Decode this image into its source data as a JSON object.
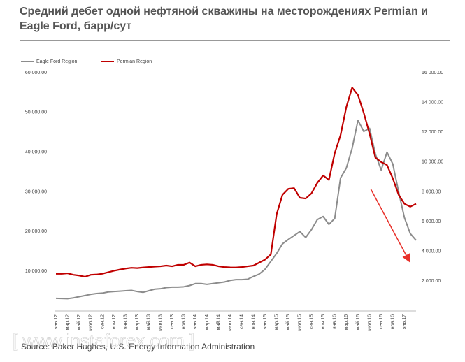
{
  "chart_data": {
    "type": "line",
    "title": "Средний дебет одной нефтяной скважины на месторождениях Permian и Eagle Ford, барр/сут",
    "source": "Source: Baker Hughes, U.S. Energy Information Administration",
    "watermark": "[ www.instaforex.com ]",
    "categories": [
      "янв.12",
      null,
      "мар.12",
      null,
      "май.12",
      null,
      "июл.12",
      null,
      "сен.12",
      null,
      "ноя.12",
      null,
      "янв.13",
      null,
      "мар.13",
      null,
      "май.13",
      null,
      "июл.13",
      null,
      "сен.13",
      null,
      "ноя.13",
      null,
      "янв.14",
      null,
      "мар.14",
      null,
      "май.14",
      null,
      "июл.14",
      null,
      "сен.14",
      null,
      "ноя.14",
      null,
      "янв.15",
      null,
      "мар.15",
      null,
      "май.15",
      null,
      "июл.15",
      null,
      "сен.15",
      null,
      "ноя.15",
      null,
      "янв.16",
      null,
      "мар.16",
      null,
      "май.16",
      null,
      "июл.16",
      null,
      "сен.16",
      null,
      "ноя.16",
      null,
      "янв.17",
      null,
      null
    ],
    "series": [
      {
        "name": "Eagle Ford Region",
        "color": "#8c8c8c",
        "axis": "y",
        "values": [
          3200,
          3150,
          3100,
          3300,
          3600,
          3900,
          4200,
          4400,
          4500,
          4800,
          4900,
          5000,
          5100,
          5200,
          4900,
          4700,
          5100,
          5500,
          5600,
          5900,
          6000,
          6000,
          6100,
          6400,
          6900,
          6900,
          6700,
          6900,
          7100,
          7300,
          7700,
          7900,
          7900,
          8000,
          8700,
          9300,
          10500,
          12500,
          14500,
          16900,
          18000,
          19000,
          20000,
          18500,
          20500,
          23000,
          23800,
          21800,
          23300,
          33500,
          36000,
          41000,
          48000,
          45200,
          46000,
          39500,
          35500,
          40000,
          37000,
          30000,
          23500,
          19500,
          17800
        ]
      },
      {
        "name": "Permian Region",
        "color": "#c00000",
        "axis": "y2",
        "values": [
          2500,
          2500,
          2530,
          2430,
          2380,
          2300,
          2430,
          2450,
          2500,
          2600,
          2700,
          2780,
          2850,
          2900,
          2880,
          2920,
          2950,
          2980,
          3000,
          3050,
          3000,
          3100,
          3100,
          3250,
          3000,
          3100,
          3130,
          3100,
          3000,
          2950,
          2930,
          2920,
          2950,
          3000,
          3050,
          3250,
          3450,
          3800,
          6500,
          7800,
          8200,
          8250,
          7600,
          7550,
          7900,
          8600,
          9100,
          8800,
          10600,
          11800,
          13700,
          15000,
          14500,
          13300,
          11900,
          10300,
          10000,
          9800,
          8900,
          7800,
          7200,
          7000,
          7200
        ]
      }
    ],
    "ylim": [
      0,
      60000
    ],
    "yticks": [
      {
        "value": 10000,
        "label": "10 000.00"
      },
      {
        "value": 20000,
        "label": "20 000.00"
      },
      {
        "value": 30000,
        "label": "30 000.00"
      },
      {
        "value": 40000,
        "label": "40 000.00"
      },
      {
        "value": 50000,
        "label": "50 000.00"
      },
      {
        "value": 60000,
        "label": "60 000.00"
      }
    ],
    "y2lim": [
      0,
      16000
    ],
    "y2ticks": [
      {
        "value": 2000,
        "label": "2 000.00"
      },
      {
        "value": 4000,
        "label": "4 000.00"
      },
      {
        "value": 6000,
        "label": "6 000.00"
      },
      {
        "value": 8000,
        "label": "8 000.00"
      },
      {
        "value": 10000,
        "label": "10 000.00"
      },
      {
        "value": 12000,
        "label": "12 000.00"
      },
      {
        "value": 14000,
        "label": "14 000.00"
      },
      {
        "value": 16000,
        "label": "16 000.00"
      }
    ],
    "legend": "top-left",
    "grid": false
  }
}
